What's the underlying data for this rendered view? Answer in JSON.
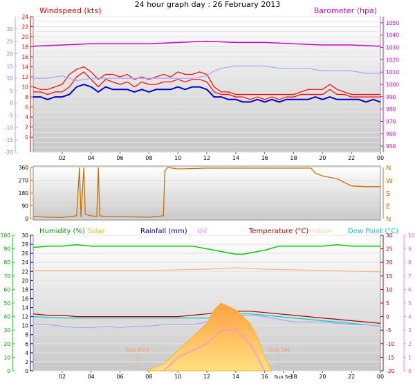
{
  "chart_data": [
    {
      "type": "line",
      "panel": "wind-baro",
      "title": "24 hour graph day : 26 February 2013",
      "legend": [
        {
          "name": "Windspeed (kts)",
          "color": "#cc0000"
        },
        {
          "name": "Barometer (hpa)",
          "color": "#cc00cc"
        }
      ],
      "x_ticks": [
        "02",
        "04",
        "06",
        "08",
        "10",
        "12",
        "14",
        "16",
        "18",
        "20",
        "22",
        "00"
      ],
      "left_axis": {
        "ylim": [
          -20,
          34
        ],
        "ticks": [
          34,
          32,
          30,
          28,
          26,
          24,
          22,
          20,
          18,
          16,
          14,
          12,
          10,
          8,
          6,
          4,
          2,
          0,
          -2,
          -4,
          -6,
          -8,
          -10,
          -12,
          -14,
          -16,
          -18,
          -20
        ],
        "labels": [
          24,
          22,
          20,
          18,
          16,
          14,
          12,
          10,
          8,
          6,
          4,
          2,
          0
        ],
        "outer_ticks": [
          30,
          25,
          20,
          15,
          10,
          5,
          0,
          -5,
          -10,
          -15,
          -20
        ]
      },
      "right_axis": {
        "ylim": [
          945,
          1055
        ],
        "ticks": [
          1050,
          1040,
          1030,
          1020,
          1010,
          1000,
          990,
          980,
          970,
          960,
          950
        ]
      },
      "series": [
        {
          "name": "Windspeed (kts)",
          "color": "#ff0000",
          "unit_axis": "left",
          "x": [
            0,
            0.5,
            1,
            1.5,
            2,
            2.5,
            3,
            3.5,
            4,
            4.5,
            5,
            5.5,
            6,
            6.5,
            7,
            7.5,
            8,
            8.5,
            9,
            9.5,
            10,
            10.5,
            11,
            11.5,
            12,
            12.5,
            13,
            13.5,
            14,
            14.5,
            15,
            15.5,
            16,
            16.5,
            17,
            17.5,
            18,
            18.5,
            19,
            19.5,
            20,
            20.5,
            21,
            21.5,
            22,
            22.5,
            23,
            23.5,
            24
          ],
          "values": [
            4,
            4,
            3,
            4,
            4,
            6,
            10,
            12,
            9,
            6,
            9,
            8,
            7,
            8,
            6,
            8,
            7,
            7,
            8,
            8,
            9,
            8,
            9,
            9,
            8,
            4,
            3,
            3,
            2,
            2,
            1,
            2,
            1,
            2,
            1,
            2,
            2,
            3,
            3,
            3,
            3,
            5,
            3,
            3,
            2,
            2,
            2,
            2,
            2
          ]
        },
        {
          "name": "Wind gust",
          "color": "#ff0000",
          "unit_axis": "left",
          "x": [
            0,
            0.5,
            1,
            1.5,
            2,
            2.5,
            3,
            3.5,
            4,
            4.5,
            5,
            5.5,
            6,
            6.5,
            7,
            7.5,
            8,
            8.5,
            9,
            9.5,
            10,
            10.5,
            11,
            11.5,
            12,
            12.5,
            13,
            13.5,
            14,
            14.5,
            15,
            15.5,
            16,
            16.5,
            17,
            17.5,
            18,
            18.5,
            19,
            19.5,
            20,
            20.5,
            21,
            21.5,
            22,
            22.5,
            23,
            23.5,
            24
          ],
          "values": [
            6,
            5,
            5,
            6,
            7,
            11,
            13,
            14,
            12,
            9,
            11,
            11,
            10,
            11,
            9,
            10,
            9,
            10,
            11,
            10,
            12,
            11,
            11,
            12,
            11,
            6,
            4,
            4,
            3,
            3,
            3,
            3,
            3,
            3,
            3,
            3,
            3,
            4,
            5,
            5,
            5,
            7,
            5,
            4,
            3,
            3,
            3,
            3,
            3
          ]
        },
        {
          "name": "Wind average",
          "color": "#0000cc",
          "unit_axis": "left",
          "x": [
            0,
            0.5,
            1,
            1.5,
            2,
            2.5,
            3,
            3.5,
            4,
            4.5,
            5,
            5.5,
            6,
            6.5,
            7,
            7.5,
            8,
            8.5,
            9,
            9.5,
            10,
            10.5,
            11,
            11.5,
            12,
            12.5,
            13,
            13.5,
            14,
            14.5,
            15,
            15.5,
            16,
            16.5,
            17,
            17.5,
            18,
            18.5,
            19,
            19.5,
            20,
            20.5,
            21,
            21.5,
            22,
            22.5,
            23,
            23.5,
            24
          ],
          "values": [
            2,
            2,
            1,
            2,
            2,
            3,
            6,
            7,
            6,
            4,
            6,
            5,
            5,
            5,
            4,
            5,
            4,
            5,
            5,
            5,
            6,
            5,
            6,
            6,
            5,
            2,
            2,
            1,
            1,
            0,
            0,
            1,
            0,
            1,
            0,
            1,
            1,
            1,
            1,
            2,
            1,
            2,
            1,
            1,
            1,
            1,
            0,
            1,
            0
          ]
        },
        {
          "name": "Wind chill temp",
          "color": "#a0a8ff",
          "unit_axis": "left",
          "x": [
            0,
            1,
            2,
            3,
            4,
            5,
            6,
            7,
            8,
            9,
            10,
            11,
            12,
            12.5,
            13,
            14,
            15,
            16,
            17,
            18,
            19,
            20,
            21,
            22,
            23,
            24
          ],
          "values": [
            10,
            10,
            11,
            9,
            10,
            10,
            10,
            10,
            10,
            10,
            10,
            10,
            11,
            13,
            14,
            15,
            15,
            15,
            14,
            14,
            14,
            13,
            13,
            13,
            12,
            12
          ]
        },
        {
          "name": "Barometer (hpa)",
          "color": "#cc00cc",
          "unit_axis": "right",
          "x": [
            0,
            2,
            4,
            6,
            8,
            10,
            12,
            14,
            16,
            18,
            20,
            22,
            24
          ],
          "values": [
            1031,
            1032,
            1033,
            1033,
            1033,
            1034,
            1035,
            1034,
            1034,
            1033,
            1032,
            1032,
            1031
          ]
        }
      ]
    },
    {
      "type": "line",
      "panel": "wind-direction",
      "ylim": [
        0,
        360
      ],
      "left_ticks": [
        360,
        270,
        180,
        90,
        0
      ],
      "right_labels": [
        "N",
        "W",
        "S",
        "E",
        "N"
      ],
      "series": [
        {
          "name": "Wind direction",
          "color": "#c87000",
          "x": [
            0,
            1,
            2,
            3,
            3.2,
            3.3,
            3.5,
            3.6,
            4,
            4.4,
            4.5,
            4.6,
            5,
            6,
            7,
            8,
            9,
            9.1,
            9.3,
            10,
            12,
            14,
            16,
            18,
            19.2,
            19.5,
            20,
            21,
            22,
            23,
            24
          ],
          "values": [
            15,
            10,
            8,
            20,
            360,
            10,
            360,
            30,
            20,
            15,
            360,
            20,
            15,
            15,
            12,
            10,
            20,
            335,
            360,
            350,
            355,
            355,
            355,
            355,
            355,
            320,
            300,
            280,
            230,
            225,
            225
          ]
        }
      ]
    },
    {
      "type": "line",
      "panel": "humidity-temp",
      "legend": [
        {
          "name": "Humidity (%)",
          "color": "#009900"
        },
        {
          "name": "Solar",
          "color": "#cccc00"
        },
        {
          "name": "Rainfall (mm)",
          "color": "#000099"
        },
        {
          "name": "UV",
          "color": "#ff80ff"
        },
        {
          "name": "Temperature (°C)",
          "color": "#aa0000"
        },
        {
          "name": "Indoor",
          "color": "#ffccaa"
        },
        {
          "name": "Dew Point (°C)",
          "color": "#00cccc"
        }
      ],
      "x_ticks": [
        "02",
        "04",
        "06",
        "08",
        "10",
        "12",
        "14",
        "16",
        "Sun Set",
        "18",
        "20",
        "22",
        "00"
      ],
      "annotations": [
        "Sun Rise",
        "Sun Set"
      ],
      "left_axis_1": {
        "ylim": [
          0,
          100
        ],
        "ticks": [
          100,
          90,
          80,
          70,
          60,
          50,
          40,
          30,
          20,
          10,
          0
        ]
      },
      "left_axis_2": {
        "ylim": [
          0,
          30
        ],
        "ticks": [
          30,
          28,
          26,
          24,
          22,
          20,
          18,
          16,
          14,
          12,
          10,
          8,
          6,
          4,
          2,
          0
        ]
      },
      "right_axis_1": {
        "ylim": [
          -20,
          30
        ],
        "ticks": [
          30,
          25,
          20,
          15,
          10,
          5,
          0,
          -5,
          -10,
          -15,
          -20
        ]
      },
      "right_axis_2": {
        "ylim": [
          0,
          10
        ],
        "ticks": [
          10,
          9,
          8,
          7,
          6,
          5,
          4,
          3,
          2,
          1,
          0
        ]
      },
      "series": [
        {
          "name": "Humidity (%)",
          "color": "#00cc00",
          "x": [
            0,
            1,
            2,
            3,
            4,
            5,
            6,
            7,
            8,
            9,
            10,
            11,
            12,
            13,
            13.5,
            14,
            14.5,
            15,
            16,
            17,
            18,
            19,
            20,
            21,
            22,
            23,
            24
          ],
          "values": [
            91,
            92,
            92,
            93,
            92,
            92,
            92,
            92,
            92,
            92,
            92,
            92,
            90,
            88,
            87,
            86,
            86,
            87,
            89,
            92,
            92,
            92,
            92,
            93,
            92,
            92,
            92
          ]
        },
        {
          "name": "Temperature (°C)",
          "color": "#aa0000",
          "x": [
            0,
            1,
            2,
            3,
            4,
            5,
            6,
            7,
            8,
            9,
            10,
            11,
            12,
            13,
            14,
            15,
            16,
            17,
            18,
            19,
            20,
            21,
            22,
            23,
            24
          ],
          "values": [
            1,
            0.5,
            0.5,
            0,
            0,
            0,
            0,
            0,
            0,
            0,
            0,
            0.5,
            1,
            1.5,
            2,
            2,
            1.5,
            1,
            0.5,
            0,
            -0.5,
            -1,
            -1.5,
            -2,
            -2.5
          ]
        },
        {
          "name": "Dew Point (°C)",
          "color": "#00cccc",
          "x": [
            0,
            2,
            4,
            6,
            8,
            10,
            12,
            13,
            14,
            15,
            16,
            17,
            18,
            19,
            20,
            21,
            22,
            23,
            24
          ],
          "values": [
            0,
            -0.5,
            -0.5,
            -0.5,
            -0.5,
            -0.5,
            -0.5,
            0,
            1,
            1,
            0.5,
            0,
            -0.5,
            -1,
            -1.5,
            -2,
            -2.5,
            -3,
            -3.5
          ]
        },
        {
          "name": "Apparent temp",
          "color": "#a0a8ff",
          "x": [
            0,
            1,
            2,
            3,
            4,
            5,
            6,
            7,
            8,
            9,
            10,
            11,
            12,
            13,
            14,
            15,
            16,
            17,
            18,
            19,
            20,
            21,
            22,
            23,
            24
          ],
          "values": [
            -3,
            -3,
            -3.5,
            -4,
            -4,
            -3.5,
            -4,
            -3.5,
            -3.5,
            -3,
            -3,
            -3,
            -2,
            0,
            0.5,
            0.5,
            0,
            -1,
            -2,
            -2,
            -2,
            -2.5,
            -3,
            -3,
            -3.5
          ]
        },
        {
          "name": "Indoor",
          "color": "#ffb080",
          "x": [
            0,
            4,
            8,
            12,
            14,
            16,
            20,
            24
          ],
          "values": [
            17,
            17,
            17,
            17.5,
            18,
            17.5,
            17,
            16.5
          ]
        },
        {
          "name": "Solar",
          "color": "#ffb040",
          "x": [
            7.8,
            9,
            10,
            11,
            12,
            12.5,
            13,
            14,
            15,
            15.5,
            16,
            16.5
          ],
          "values": [
            0,
            0.5,
            1.5,
            2.5,
            3.5,
            4.5,
            5,
            4.5,
            3.5,
            2.5,
            1,
            0
          ]
        },
        {
          "name": "UV",
          "color": "#ff80ff",
          "x": [
            9,
            10,
            12,
            13,
            14,
            15,
            16
          ],
          "values": [
            0,
            1,
            2,
            3,
            3,
            2,
            0
          ]
        }
      ]
    }
  ]
}
